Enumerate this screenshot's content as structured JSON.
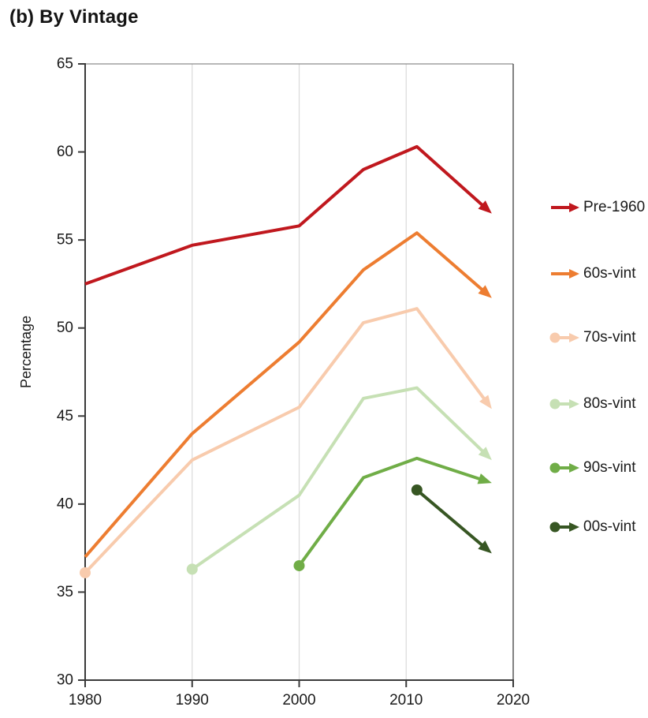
{
  "chart_data": {
    "type": "line",
    "title": "(b) By Vintage",
    "xlabel": "",
    "ylabel": "Percentage",
    "xlim": [
      1980,
      2020
    ],
    "ylim": [
      30,
      65
    ],
    "xticks": [
      1980,
      1990,
      2000,
      2010,
      2020
    ],
    "yticks": [
      30,
      35,
      40,
      45,
      50,
      55,
      60,
      65
    ],
    "gridlines_x": [
      1990,
      2000,
      2010
    ],
    "grid": "vertical-only",
    "legend_position": "right",
    "series": [
      {
        "name": "Pre-1960",
        "color": "#C0181E",
        "start_marker": false,
        "end_arrow": true,
        "x": [
          1980,
          1990,
          2000,
          2006,
          2011,
          2018
        ],
        "y": [
          52.5,
          54.7,
          55.8,
          59.0,
          60.3,
          56.5
        ]
      },
      {
        "name": "60s-vint",
        "color": "#ED7D31",
        "start_marker": false,
        "end_arrow": true,
        "x": [
          1980,
          1990,
          2000,
          2006,
          2011,
          2018
        ],
        "y": [
          37.0,
          44.0,
          49.2,
          53.3,
          55.4,
          51.7
        ]
      },
      {
        "name": "70s-vint",
        "color": "#F8CBAD",
        "start_marker": true,
        "end_arrow": true,
        "x": [
          1980,
          1990,
          2000,
          2006,
          2011,
          2018
        ],
        "y": [
          36.1,
          42.5,
          45.5,
          50.3,
          51.1,
          45.4
        ]
      },
      {
        "name": "80s-vint",
        "color": "#C6E0B4",
        "start_marker": true,
        "end_arrow": true,
        "x": [
          1990,
          2000,
          2006,
          2011,
          2018
        ],
        "y": [
          36.3,
          40.5,
          46.0,
          46.6,
          42.5
        ]
      },
      {
        "name": "90s-vint",
        "color": "#70AD47",
        "start_marker": true,
        "end_arrow": true,
        "x": [
          2000,
          2006,
          2011,
          2018
        ],
        "y": [
          36.5,
          41.5,
          42.6,
          41.2
        ]
      },
      {
        "name": "00s-vint",
        "color": "#375623",
        "start_marker": true,
        "end_arrow": true,
        "x": [
          2011,
          2018
        ],
        "y": [
          40.8,
          37.2
        ]
      }
    ]
  },
  "colors": {
    "axis_dark": "#3a3a3a",
    "border_top": "#8c8c8c",
    "border_right": "#595959",
    "gridline": "#dcdcdc",
    "text": "#1a1a1a"
  }
}
